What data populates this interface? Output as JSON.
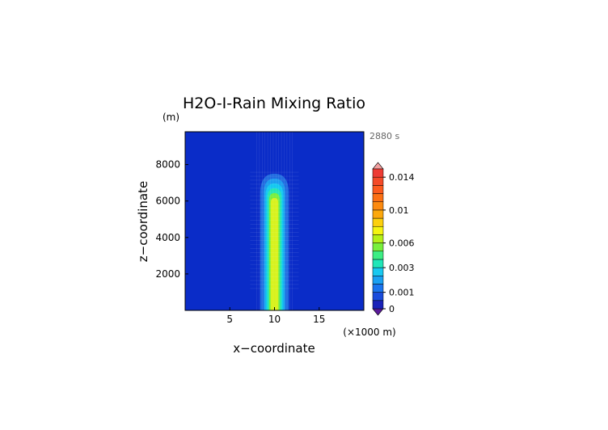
{
  "chart_data": {
    "type": "heatmap",
    "title": "H2O-I-Rain Mixing Ratio",
    "time_label": "2880 s",
    "xlabel": "x−coordinate",
    "ylabel": "z−coordinate",
    "x_units": "(×1000 m)",
    "y_units": "(m)",
    "xlim": [
      0,
      20
    ],
    "ylim": [
      0,
      9800
    ],
    "x_ticks": [
      5,
      10,
      15
    ],
    "x_tick_labels": [
      "5",
      "10",
      "15"
    ],
    "y_ticks": [
      2000,
      4000,
      6000,
      8000
    ],
    "y_tick_labels": [
      "2000",
      "4000",
      "6000",
      "8000"
    ],
    "plume": {
      "center_x": 10,
      "top": 7500,
      "layers": [
        {
          "level": 0.001,
          "half_width": 1.6,
          "color": "#1f6be0"
        },
        {
          "level": 0.002,
          "half_width": 1.2,
          "color": "#1a9cef"
        },
        {
          "level": 0.003,
          "half_width": 1.0,
          "color": "#12c8f0"
        },
        {
          "level": 0.004,
          "half_width": 0.8,
          "color": "#23e6b4"
        },
        {
          "level": 0.006,
          "half_width": 0.6,
          "color": "#78ee3c"
        },
        {
          "level": 0.007,
          "half_width": 0.42,
          "color": "#d8f21c"
        }
      ]
    },
    "background_color": "#0a2cc8",
    "colorbar": {
      "levels": [
        0,
        0.0005,
        0.001,
        0.0015,
        0.002,
        0.003,
        0.004,
        0.005,
        0.006,
        0.007,
        0.008,
        0.009,
        0.01,
        0.011,
        0.012,
        0.013,
        0.014,
        0.015
      ],
      "colors": [
        "#1a22b8",
        "#1a4cdc",
        "#1a74ee",
        "#1aa0f2",
        "#18c8f0",
        "#20e6b8",
        "#3cee84",
        "#78f03c",
        "#b4f018",
        "#f4f412",
        "#fcd00e",
        "#fca80c",
        "#fc8a10",
        "#fc7014",
        "#fc5a1e",
        "#f44a28",
        "#ee3c34"
      ],
      "under_color": "#5a1a9a",
      "over_color": "#f2a0a0",
      "tick_labels": [
        {
          "value": 0,
          "label": "0"
        },
        {
          "value": 0.001,
          "label": "0.001"
        },
        {
          "value": 0.003,
          "label": "0.003"
        },
        {
          "value": 0.006,
          "label": "0.006"
        },
        {
          "value": 0.01,
          "label": "0.01"
        },
        {
          "value": 0.014,
          "label": "0.014"
        }
      ]
    }
  }
}
